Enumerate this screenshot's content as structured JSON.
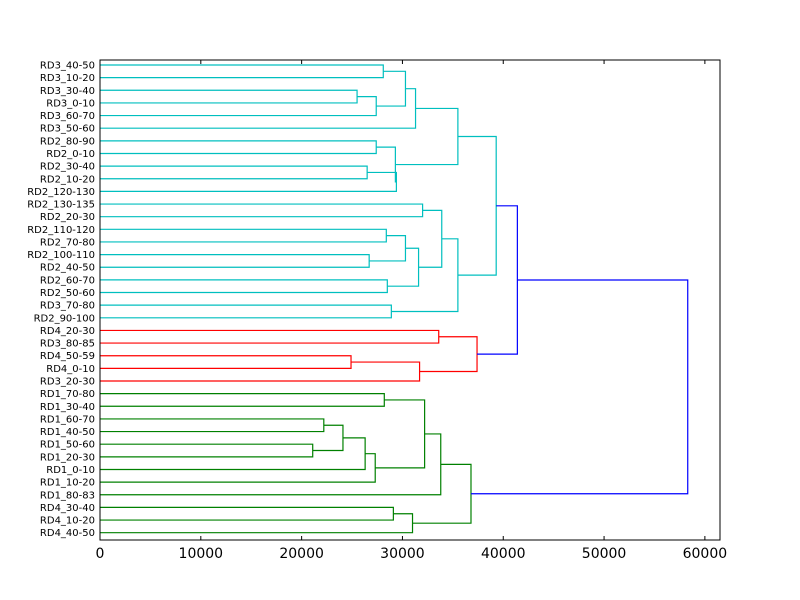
{
  "chart_data": {
    "type": "dendrogram",
    "orientation": "left",
    "title": "",
    "xlabel": "",
    "ylabel": "",
    "xlim": [
      0,
      61500
    ],
    "x_ticks": [
      "0",
      "10000",
      "20000",
      "30000",
      "40000",
      "50000",
      "60000"
    ],
    "grid": false,
    "leaves": [
      "RD3_40-50",
      "RD3_10-20",
      "RD3_30-40",
      "RD3_0-10",
      "RD3_60-70",
      "RD3_50-60",
      "RD2_80-90",
      "RD2_0-10",
      "RD2_30-40",
      "RD2_10-20",
      "RD2_120-130",
      "RD2_130-135",
      "RD2_20-30",
      "RD2_110-120",
      "RD2_70-80",
      "RD2_100-110",
      "RD2_40-50",
      "RD2_60-70",
      "RD2_50-60",
      "RD3_70-80",
      "RD2_90-100",
      "RD4_20-30",
      "RD3_80-85",
      "RD4_50-59",
      "RD4_0-10",
      "RD3_20-30",
      "RD1_70-80",
      "RD1_30-40",
      "RD1_60-70",
      "RD1_40-50",
      "RD1_50-60",
      "RD1_20-30",
      "RD1_0-10",
      "RD1_10-20",
      "RD1_80-83",
      "RD4_30-40",
      "RD4_10-20",
      "RD4_40-50"
    ],
    "colors": {
      "cyan": "#00bfbf",
      "red": "#ff0000",
      "green": "#008000",
      "blue": "#0000ff",
      "axis": "#000000"
    },
    "merges": [
      {
        "a": "L0",
        "b": "L1",
        "height": 28100,
        "color": "cyan"
      },
      {
        "a": "L2",
        "b": "L3",
        "height": 25500,
        "color": "cyan"
      },
      {
        "a": "M1",
        "b": "L4",
        "height": 27400,
        "color": "cyan"
      },
      {
        "a": "M0",
        "b": "M2",
        "height": 30300,
        "color": "cyan"
      },
      {
        "a": "M3",
        "b": "L5",
        "height": 31300,
        "color": "cyan"
      },
      {
        "a": "L6",
        "b": "L7",
        "height": 27400,
        "color": "cyan"
      },
      {
        "a": "L8",
        "b": "L9",
        "height": 26500,
        "color": "cyan"
      },
      {
        "a": "M6",
        "b": "L10",
        "height": 29400,
        "color": "cyan"
      },
      {
        "a": "M5",
        "b": "M7",
        "height": 29300,
        "color": "cyan"
      },
      {
        "a": "M4",
        "b": "M8",
        "height": 35500,
        "color": "cyan"
      },
      {
        "a": "L11",
        "b": "L12",
        "height": 32000,
        "color": "cyan"
      },
      {
        "a": "L13",
        "b": "L14",
        "height": 28400,
        "color": "cyan"
      },
      {
        "a": "L15",
        "b": "L16",
        "height": 26700,
        "color": "cyan"
      },
      {
        "a": "M11",
        "b": "M12",
        "height": 30300,
        "color": "cyan"
      },
      {
        "a": "L17",
        "b": "L18",
        "height": 28500,
        "color": "cyan"
      },
      {
        "a": "M13",
        "b": "M14",
        "height": 31600,
        "color": "cyan"
      },
      {
        "a": "M10",
        "b": "M15",
        "height": 33900,
        "color": "cyan"
      },
      {
        "a": "L19",
        "b": "L20",
        "height": 28900,
        "color": "cyan"
      },
      {
        "a": "M16",
        "b": "M17",
        "height": 35500,
        "color": "cyan"
      },
      {
        "a": "M9",
        "b": "M18",
        "height": 39300,
        "color": "cyan"
      },
      {
        "a": "L21",
        "b": "L22",
        "height": 33600,
        "color": "red"
      },
      {
        "a": "L23",
        "b": "L24",
        "height": 24900,
        "color": "red"
      },
      {
        "a": "M21",
        "b": "L25",
        "height": 31700,
        "color": "red"
      },
      {
        "a": "M20",
        "b": "M22",
        "height": 37400,
        "color": "red"
      },
      {
        "a": "M19",
        "b": "M23",
        "height": 41400,
        "color": "blue"
      },
      {
        "a": "L26",
        "b": "L27",
        "height": 28200,
        "color": "green"
      },
      {
        "a": "L28",
        "b": "L29",
        "height": 22200,
        "color": "green"
      },
      {
        "a": "L30",
        "b": "L31",
        "height": 21100,
        "color": "green"
      },
      {
        "a": "M26",
        "b": "M27",
        "height": 24100,
        "color": "green"
      },
      {
        "a": "M28",
        "b": "L32",
        "height": 26300,
        "color": "green"
      },
      {
        "a": "M29",
        "b": "L33",
        "height": 27300,
        "color": "green"
      },
      {
        "a": "M25",
        "b": "M30",
        "height": 32200,
        "color": "green"
      },
      {
        "a": "M31",
        "b": "L34",
        "height": 33800,
        "color": "green"
      },
      {
        "a": "L35",
        "b": "L36",
        "height": 29100,
        "color": "green"
      },
      {
        "a": "M33",
        "b": "L37",
        "height": 31000,
        "color": "green"
      },
      {
        "a": "M32",
        "b": "M34",
        "height": 36800,
        "color": "green"
      },
      {
        "a": "M24",
        "b": "M35",
        "height": 58300,
        "color": "blue"
      }
    ]
  }
}
